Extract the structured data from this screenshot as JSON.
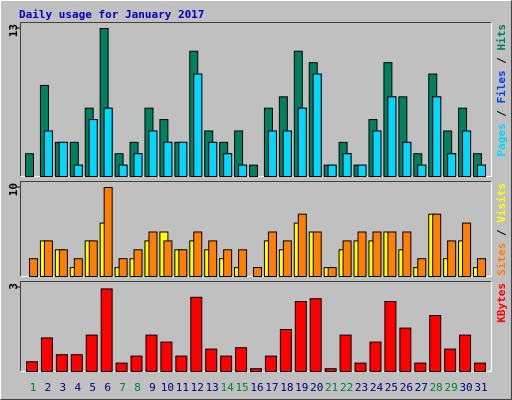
{
  "chart_data": [
    {
      "type": "bar",
      "title": "Daily usage for January 2017",
      "ylim": [
        0,
        13
      ],
      "yticks": [
        13
      ],
      "legend_separator": " / ",
      "series": [
        {
          "name": "Hits",
          "color": "#008060",
          "values": [
            2,
            8,
            3,
            3,
            6,
            13,
            2,
            3,
            6,
            5,
            3,
            11,
            4,
            3,
            4,
            1,
            6,
            7,
            11,
            10,
            1,
            3,
            1,
            5,
            10,
            7,
            2,
            9,
            4,
            6,
            2
          ]
        },
        {
          "name": "Files",
          "color": "#0040ff",
          "values": [
            0,
            4,
            3,
            1,
            5,
            6,
            1,
            2,
            4,
            3,
            3,
            9,
            3,
            2,
            1,
            0,
            4,
            4,
            6,
            9,
            1,
            2,
            1,
            4,
            7,
            3,
            1,
            7,
            2,
            4,
            1
          ]
        },
        {
          "name": "Pages",
          "color": "#00d8ff",
          "values": [
            0,
            4,
            3,
            1,
            5,
            6,
            1,
            2,
            4,
            3,
            3,
            9,
            3,
            2,
            1,
            0,
            4,
            4,
            6,
            9,
            1,
            2,
            1,
            4,
            7,
            3,
            1,
            7,
            2,
            4,
            1
          ]
        }
      ]
    },
    {
      "type": "bar",
      "ylim": [
        0,
        10
      ],
      "yticks": [
        10
      ],
      "legend_separator": " / ",
      "series": [
        {
          "name": "Visits",
          "color": "#ffff00",
          "values": [
            0,
            4,
            3,
            1,
            4,
            6,
            1,
            2,
            4,
            5,
            3,
            4,
            3,
            2,
            1,
            0,
            4,
            3,
            6,
            5,
            1,
            3,
            4,
            4,
            5,
            3,
            1,
            7,
            2,
            4,
            1
          ]
        },
        {
          "name": "Sites",
          "color": "#ff8000",
          "values": [
            2,
            4,
            3,
            2,
            4,
            10,
            2,
            3,
            5,
            4,
            3,
            5,
            4,
            3,
            3,
            1,
            5,
            4,
            7,
            5,
            1,
            4,
            5,
            5,
            5,
            5,
            2,
            7,
            4,
            6,
            2
          ]
        }
      ]
    },
    {
      "type": "bar",
      "ylim": [
        0,
        3
      ],
      "yticks": [
        3
      ],
      "categories": [
        "1",
        "2",
        "3",
        "4",
        "5",
        "6",
        "7",
        "8",
        "9",
        "10",
        "11",
        "12",
        "13",
        "14",
        "15",
        "16",
        "17",
        "18",
        "19",
        "20",
        "21",
        "22",
        "23",
        "24",
        "25",
        "26",
        "27",
        "28",
        "29",
        "30",
        "31"
      ],
      "category_colors": [
        "#008040",
        "#000080",
        "#000080",
        "#000080",
        "#000080",
        "#000080",
        "#008040",
        "#008040",
        "#000080",
        "#000080",
        "#000080",
        "#000080",
        "#000080",
        "#008040",
        "#008040",
        "#000080",
        "#000080",
        "#000080",
        "#000080",
        "#000080",
        "#008040",
        "#008040",
        "#000080",
        "#000080",
        "#000080",
        "#000080",
        "#000080",
        "#008040",
        "#008040",
        "#000080",
        "#000080"
      ],
      "series": [
        {
          "name": "KBytes",
          "color": "#ff0000",
          "values": [
            0.35,
            1.2,
            0.6,
            0.6,
            1.3,
            2.95,
            0.3,
            0.55,
            1.3,
            1.05,
            0.55,
            2.65,
            0.8,
            0.55,
            0.85,
            0.1,
            0.55,
            1.5,
            2.5,
            2.6,
            0.1,
            1.3,
            0.3,
            1.05,
            2.5,
            1.55,
            0.3,
            2.0,
            0.8,
            1.3,
            0.3
          ]
        }
      ]
    }
  ]
}
